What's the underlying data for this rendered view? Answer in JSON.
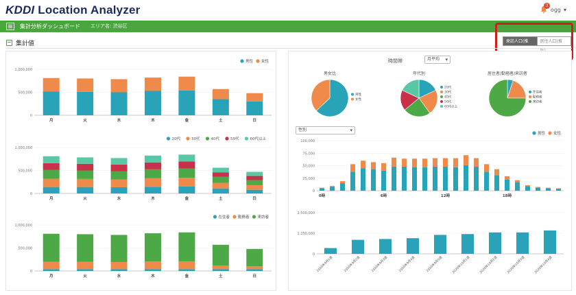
{
  "app": {
    "logo_brand": "KDDI",
    "logo_text": "Location Analyzer",
    "user_label": "ogg",
    "notifications": "3",
    "nav_title": "集計分析ダッシュボード",
    "nav_area": "エリア名: 渋谷区",
    "section_title": "集計値",
    "toggle_on": "来訪人口(推計)",
    "toggle_off": "居住人口(推計)"
  },
  "colors": {
    "teal": "#29a3b8",
    "orange": "#ef8a4a",
    "green": "#4da945",
    "red": "#c9304a",
    "lightgreen": "#59c9a5",
    "brand_green": "#4ba53e"
  },
  "right_controls": {
    "filter_label": "時間帯",
    "filter_value": "月平均",
    "metric_select": "性別"
  },
  "chart_data": [
    {
      "type": "bar",
      "title": "",
      "categories": [
        "月",
        "火",
        "水",
        "木",
        "金",
        "土",
        "日"
      ],
      "ylim": [
        0,
        1000000
      ],
      "yticks": [
        "0",
        "500,000",
        "1,000,000"
      ],
      "legend_position": "top-right",
      "series": [
        {
          "name": "男性",
          "values": [
            520000,
            510000,
            500000,
            530000,
            540000,
            350000,
            300000
          ]
        },
        {
          "name": "女性",
          "values": [
            290000,
            290000,
            285000,
            290000,
            300000,
            220000,
            180000
          ]
        }
      ]
    },
    {
      "type": "bar",
      "title": "",
      "categories": [
        "月",
        "火",
        "水",
        "木",
        "金",
        "土",
        "日"
      ],
      "ylim": [
        0,
        1000000
      ],
      "yticks": [
        "0",
        "500,000",
        "1,000,000"
      ],
      "legend_position": "top-right",
      "series": [
        {
          "name": "20代",
          "values": [
            140000,
            140000,
            135000,
            145000,
            150000,
            110000,
            80000
          ]
        },
        {
          "name": "30代",
          "values": [
            180000,
            175000,
            170000,
            185000,
            190000,
            120000,
            100000
          ]
        },
        {
          "name": "40代",
          "values": [
            190000,
            185000,
            180000,
            195000,
            200000,
            130000,
            110000
          ]
        },
        {
          "name": "50代",
          "values": [
            150000,
            145000,
            145000,
            150000,
            155000,
            100000,
            90000
          ]
        },
        {
          "name": "60代以上",
          "values": [
            150000,
            140000,
            140000,
            150000,
            150000,
            100000,
            90000
          ]
        }
      ]
    },
    {
      "type": "bar",
      "title": "",
      "categories": [
        "月",
        "火",
        "水",
        "木",
        "金",
        "土",
        "日"
      ],
      "ylim": [
        0,
        1000000
      ],
      "yticks": [
        "0",
        "500,000",
        "1,000,000"
      ],
      "legend_position": "top-right",
      "series": [
        {
          "name": "在住者",
          "values": [
            40000,
            40000,
            40000,
            40000,
            40000,
            40000,
            40000
          ]
        },
        {
          "name": "勤務者",
          "values": [
            160000,
            160000,
            155000,
            165000,
            170000,
            80000,
            60000
          ]
        },
        {
          "name": "来訪者",
          "values": [
            610000,
            600000,
            590000,
            615000,
            630000,
            450000,
            380000
          ]
        }
      ]
    },
    {
      "type": "pie",
      "title": "男女比",
      "labels": [
        "男性",
        "女性"
      ],
      "values": [
        63,
        37
      ]
    },
    {
      "type": "pie",
      "title": "年代別",
      "labels": [
        "20代",
        "30代",
        "40代",
        "50代",
        "60代以上"
      ],
      "values": [
        18,
        22,
        24,
        18,
        18
      ]
    },
    {
      "type": "pie",
      "title": "居住者/勤務者/来訪者",
      "labels": [
        "在住者",
        "勤務者",
        "来訪者"
      ],
      "values": [
        5,
        20,
        75
      ]
    },
    {
      "type": "bar",
      "title": "",
      "categories": [
        "0時",
        "1",
        "2",
        "3",
        "4",
        "5",
        "6",
        "7",
        "8",
        "9",
        "10",
        "11",
        "12時",
        "13",
        "14",
        "15",
        "16",
        "17",
        "18時",
        "19",
        "20",
        "21",
        "22",
        "23"
      ],
      "xtick_labels": {
        "0": "0時",
        "6": "6時",
        "12": "12時",
        "18": "18時"
      },
      "ylim": [
        0,
        100000
      ],
      "yticks": [
        "0",
        "25,000",
        "50,000",
        "75,000",
        "100,000"
      ],
      "legend_position": "top-right",
      "series": [
        {
          "name": "男性",
          "values": [
            5000,
            8000,
            15000,
            38000,
            45000,
            43000,
            40000,
            48000,
            48000,
            47000,
            47000,
            48000,
            48000,
            47000,
            51000,
            48000,
            38000,
            31000,
            22000,
            17000,
            9000,
            6000,
            5000,
            4000
          ]
        },
        {
          "name": "女性",
          "values": [
            1000,
            1500,
            4000,
            15000,
            15000,
            14000,
            15000,
            18000,
            16000,
            17000,
            17000,
            17000,
            17000,
            18000,
            20000,
            17000,
            15000,
            12000,
            7000,
            4000,
            2000,
            1500,
            1000,
            800
          ]
        }
      ]
    },
    {
      "type": "bar",
      "title": "",
      "categories": [
        "2020年9月1週",
        "2020年9月2週",
        "2020年9月3週",
        "2020年9月4週",
        "2020年9月5週",
        "2020年10月1週",
        "2020年10月2週",
        "2020年10月3週",
        "2020年10月4週"
      ],
      "ylim": [
        0,
        2500000
      ],
      "yticks": [
        "0",
        "1,250,000",
        "2,500,000"
      ],
      "series": [
        {
          "name": "",
          "values": [
            350000,
            850000,
            900000,
            950000,
            1150000,
            1200000,
            1300000,
            1300000,
            1420000
          ]
        }
      ]
    }
  ]
}
